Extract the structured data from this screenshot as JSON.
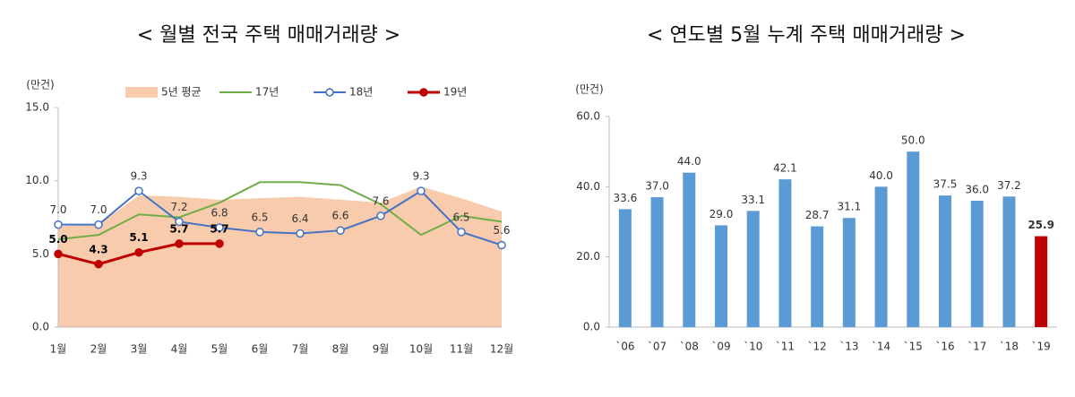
{
  "chart_data": [
    {
      "type": "line",
      "title": "< 월별 전국 주택 매매거래량 >",
      "ylabel": "(만건)",
      "categories": [
        "1월",
        "2월",
        "3월",
        "4월",
        "5월",
        "6월",
        "7월",
        "8월",
        "9월",
        "10월",
        "11월",
        "12월"
      ],
      "ylim": [
        0,
        15
      ],
      "yticks": [
        {
          "value": 0,
          "label": "0.0"
        },
        {
          "value": 5,
          "label": "5.0"
        },
        {
          "value": 10,
          "label": "10.0"
        },
        {
          "value": 15,
          "label": "15.0"
        }
      ],
      "series": [
        {
          "name": "5년 평균",
          "kind": "area",
          "color": "#f8cbad",
          "values": [
            6.9,
            7.0,
            9.0,
            8.9,
            8.7,
            8.8,
            8.9,
            8.7,
            8.5,
            9.6,
            8.8,
            7.9
          ]
        },
        {
          "name": "17년",
          "kind": "line",
          "color": "#70ad47",
          "values": [
            6.0,
            6.3,
            7.7,
            7.5,
            8.5,
            9.9,
            9.9,
            9.7,
            8.4,
            6.3,
            7.6,
            7.2
          ]
        },
        {
          "name": "18년",
          "kind": "line",
          "marker": "hollow",
          "color": "#4472c4",
          "values": [
            7.0,
            7.0,
            9.3,
            7.2,
            6.8,
            6.5,
            6.4,
            6.6,
            7.6,
            9.3,
            6.5,
            5.6
          ],
          "value_labels": [
            "7.0",
            "7.0",
            "9.3",
            "7.2",
            "6.8",
            "6.5",
            "6.4",
            "6.6",
            "7.6",
            "9.3",
            "6.5",
            "5.6"
          ]
        },
        {
          "name": "19년",
          "kind": "line",
          "marker": "filled",
          "color": "#c00000",
          "values": [
            5.0,
            4.3,
            5.1,
            5.7,
            5.7,
            null,
            null,
            null,
            null,
            null,
            null,
            null
          ],
          "value_labels": [
            "5.0",
            "4.3",
            "5.1",
            "5.7",
            "5.7",
            null,
            null,
            null,
            null,
            null,
            null,
            null
          ]
        }
      ]
    },
    {
      "type": "bar",
      "title": "< 연도별 5월 누계 주택 매매거래량 >",
      "ylabel": "(만건)",
      "categories": [
        "`06",
        "`07",
        "`08",
        "`09",
        "`10",
        "`11",
        "`12",
        "`13",
        "`14",
        "`15",
        "`16",
        "`17",
        "`18",
        "`19"
      ],
      "ylim": [
        0,
        60
      ],
      "yticks": [
        {
          "value": 0,
          "label": "0.0"
        },
        {
          "value": 20,
          "label": "20.0"
        },
        {
          "value": 40,
          "label": "40.0"
        },
        {
          "value": 60,
          "label": "60.0"
        }
      ],
      "values": [
        33.6,
        37.0,
        44.0,
        29.0,
        33.1,
        42.1,
        28.7,
        31.1,
        40.0,
        50.0,
        37.5,
        36.0,
        37.2,
        25.9
      ],
      "value_labels": [
        "33.6",
        "37.0",
        "44.0",
        "29.0",
        "33.1",
        "42.1",
        "28.7",
        "31.1",
        "40.0",
        "50.0",
        "37.5",
        "36.0",
        "37.2",
        "25.9"
      ],
      "colors": [
        "#5b9bd5",
        "#5b9bd5",
        "#5b9bd5",
        "#5b9bd5",
        "#5b9bd5",
        "#5b9bd5",
        "#5b9bd5",
        "#5b9bd5",
        "#5b9bd5",
        "#5b9bd5",
        "#5b9bd5",
        "#5b9bd5",
        "#5b9bd5",
        "#c00000"
      ]
    }
  ]
}
